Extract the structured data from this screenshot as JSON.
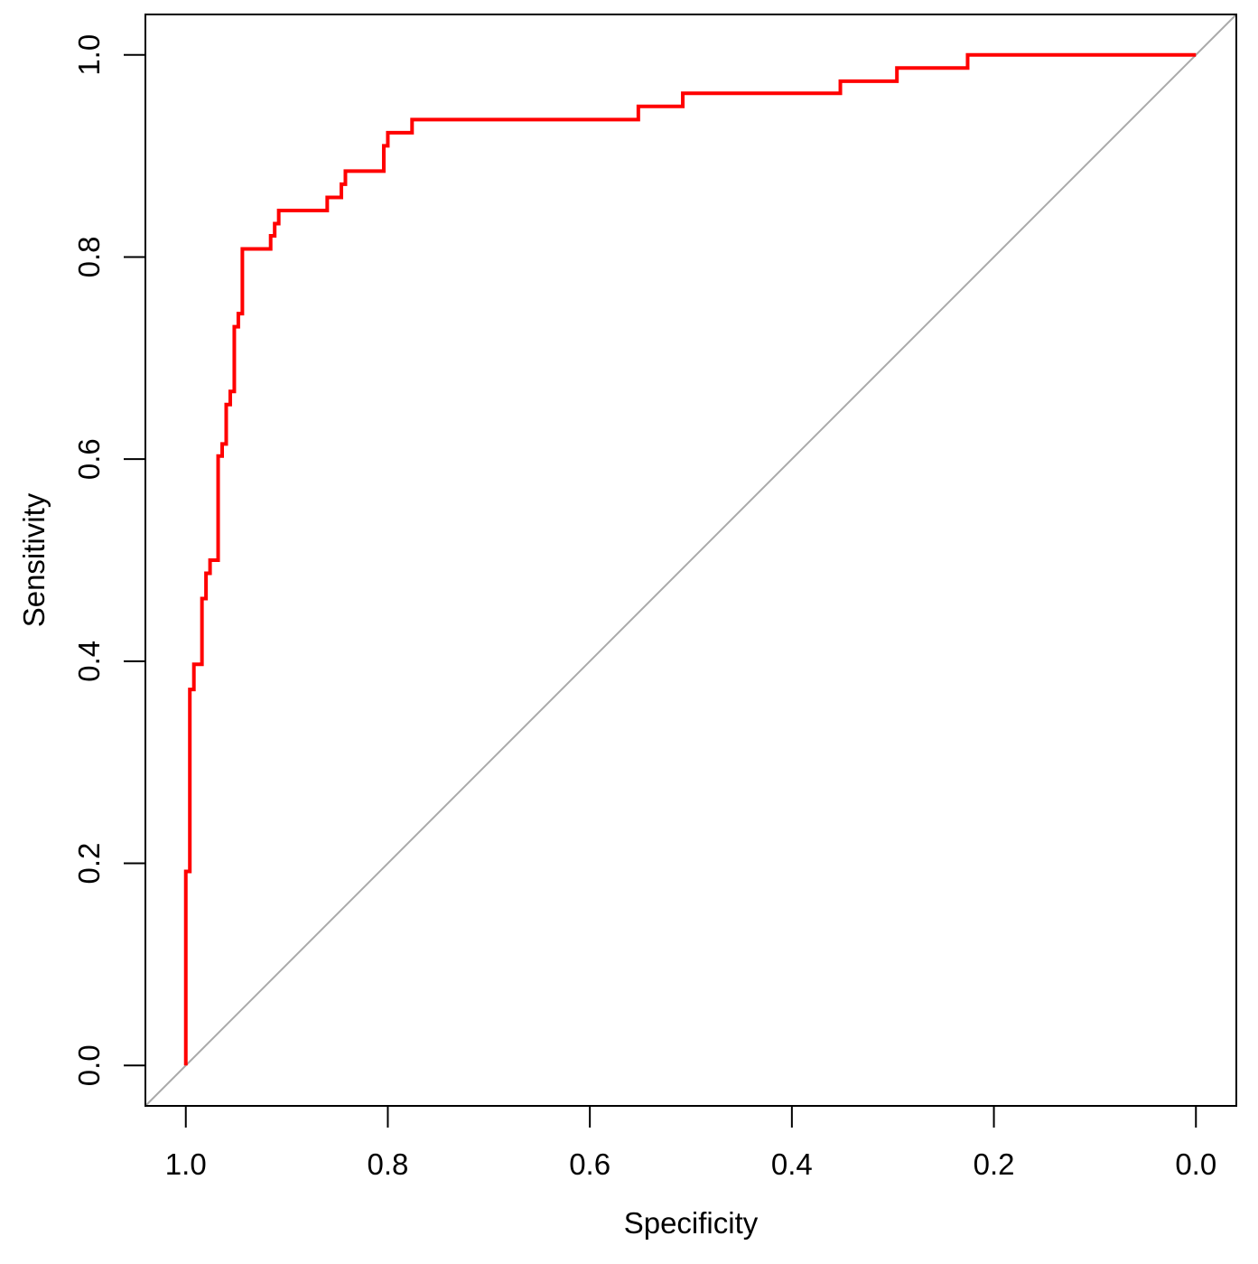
{
  "chart_data": {
    "type": "line",
    "title": "",
    "xlabel": "Specificity",
    "ylabel": "Sensitivity",
    "xlim": [
      1.04,
      -0.04
    ],
    "ylim": [
      -0.04,
      1.04
    ],
    "x_reversed": true,
    "grid": false,
    "legend": "none",
    "x_ticks": [
      1.0,
      0.8,
      0.6,
      0.4,
      0.2,
      0.0
    ],
    "x_tick_labels": [
      "1.0",
      "0.8",
      "0.6",
      "0.4",
      "0.2",
      "0.0"
    ],
    "y_ticks": [
      0.0,
      0.2,
      0.4,
      0.6,
      0.8,
      1.0
    ],
    "y_tick_labels": [
      "0.0",
      "0.2",
      "0.4",
      "0.6",
      "0.8",
      "1.0"
    ],
    "series": [
      {
        "color": "#ff0000",
        "x": [
          1.0,
          1.0,
          0.996,
          0.996,
          0.992,
          0.992,
          0.984,
          0.984,
          0.98,
          0.98,
          0.976,
          0.976,
          0.968,
          0.968,
          0.964,
          0.964,
          0.96,
          0.96,
          0.956,
          0.956,
          0.952,
          0.952,
          0.948,
          0.948,
          0.944,
          0.944,
          0.94,
          0.94,
          0.936,
          0.936,
          0.916,
          0.916,
          0.912,
          0.912,
          0.908,
          0.908,
          0.86,
          0.86,
          0.846,
          0.846,
          0.842,
          0.842,
          0.804,
          0.804,
          0.8,
          0.8,
          0.776,
          0.776,
          0.552,
          0.552,
          0.508,
          0.508,
          0.352,
          0.352,
          0.296,
          0.296,
          0.226,
          0.226,
          0.0
        ],
        "y": [
          0.0,
          0.192,
          0.192,
          0.372,
          0.372,
          0.397,
          0.397,
          0.462,
          0.462,
          0.487,
          0.487,
          0.5,
          0.5,
          0.603,
          0.603,
          0.615,
          0.615,
          0.654,
          0.654,
          0.667,
          0.667,
          0.731,
          0.731,
          0.744,
          0.744,
          0.808,
          0.808,
          0.808,
          0.808,
          0.808,
          0.808,
          0.821,
          0.821,
          0.833,
          0.833,
          0.846,
          0.846,
          0.859,
          0.859,
          0.872,
          0.872,
          0.885,
          0.885,
          0.91,
          0.91,
          0.923,
          0.923,
          0.936,
          0.936,
          0.949,
          0.949,
          0.962,
          0.962,
          0.974,
          0.974,
          0.987,
          0.987,
          1.0,
          1.0
        ]
      }
    ],
    "reference_line": {
      "x": [
        1.04,
        -0.04
      ],
      "y": [
        -0.04,
        1.04
      ],
      "color": "#aaaaaa"
    }
  }
}
